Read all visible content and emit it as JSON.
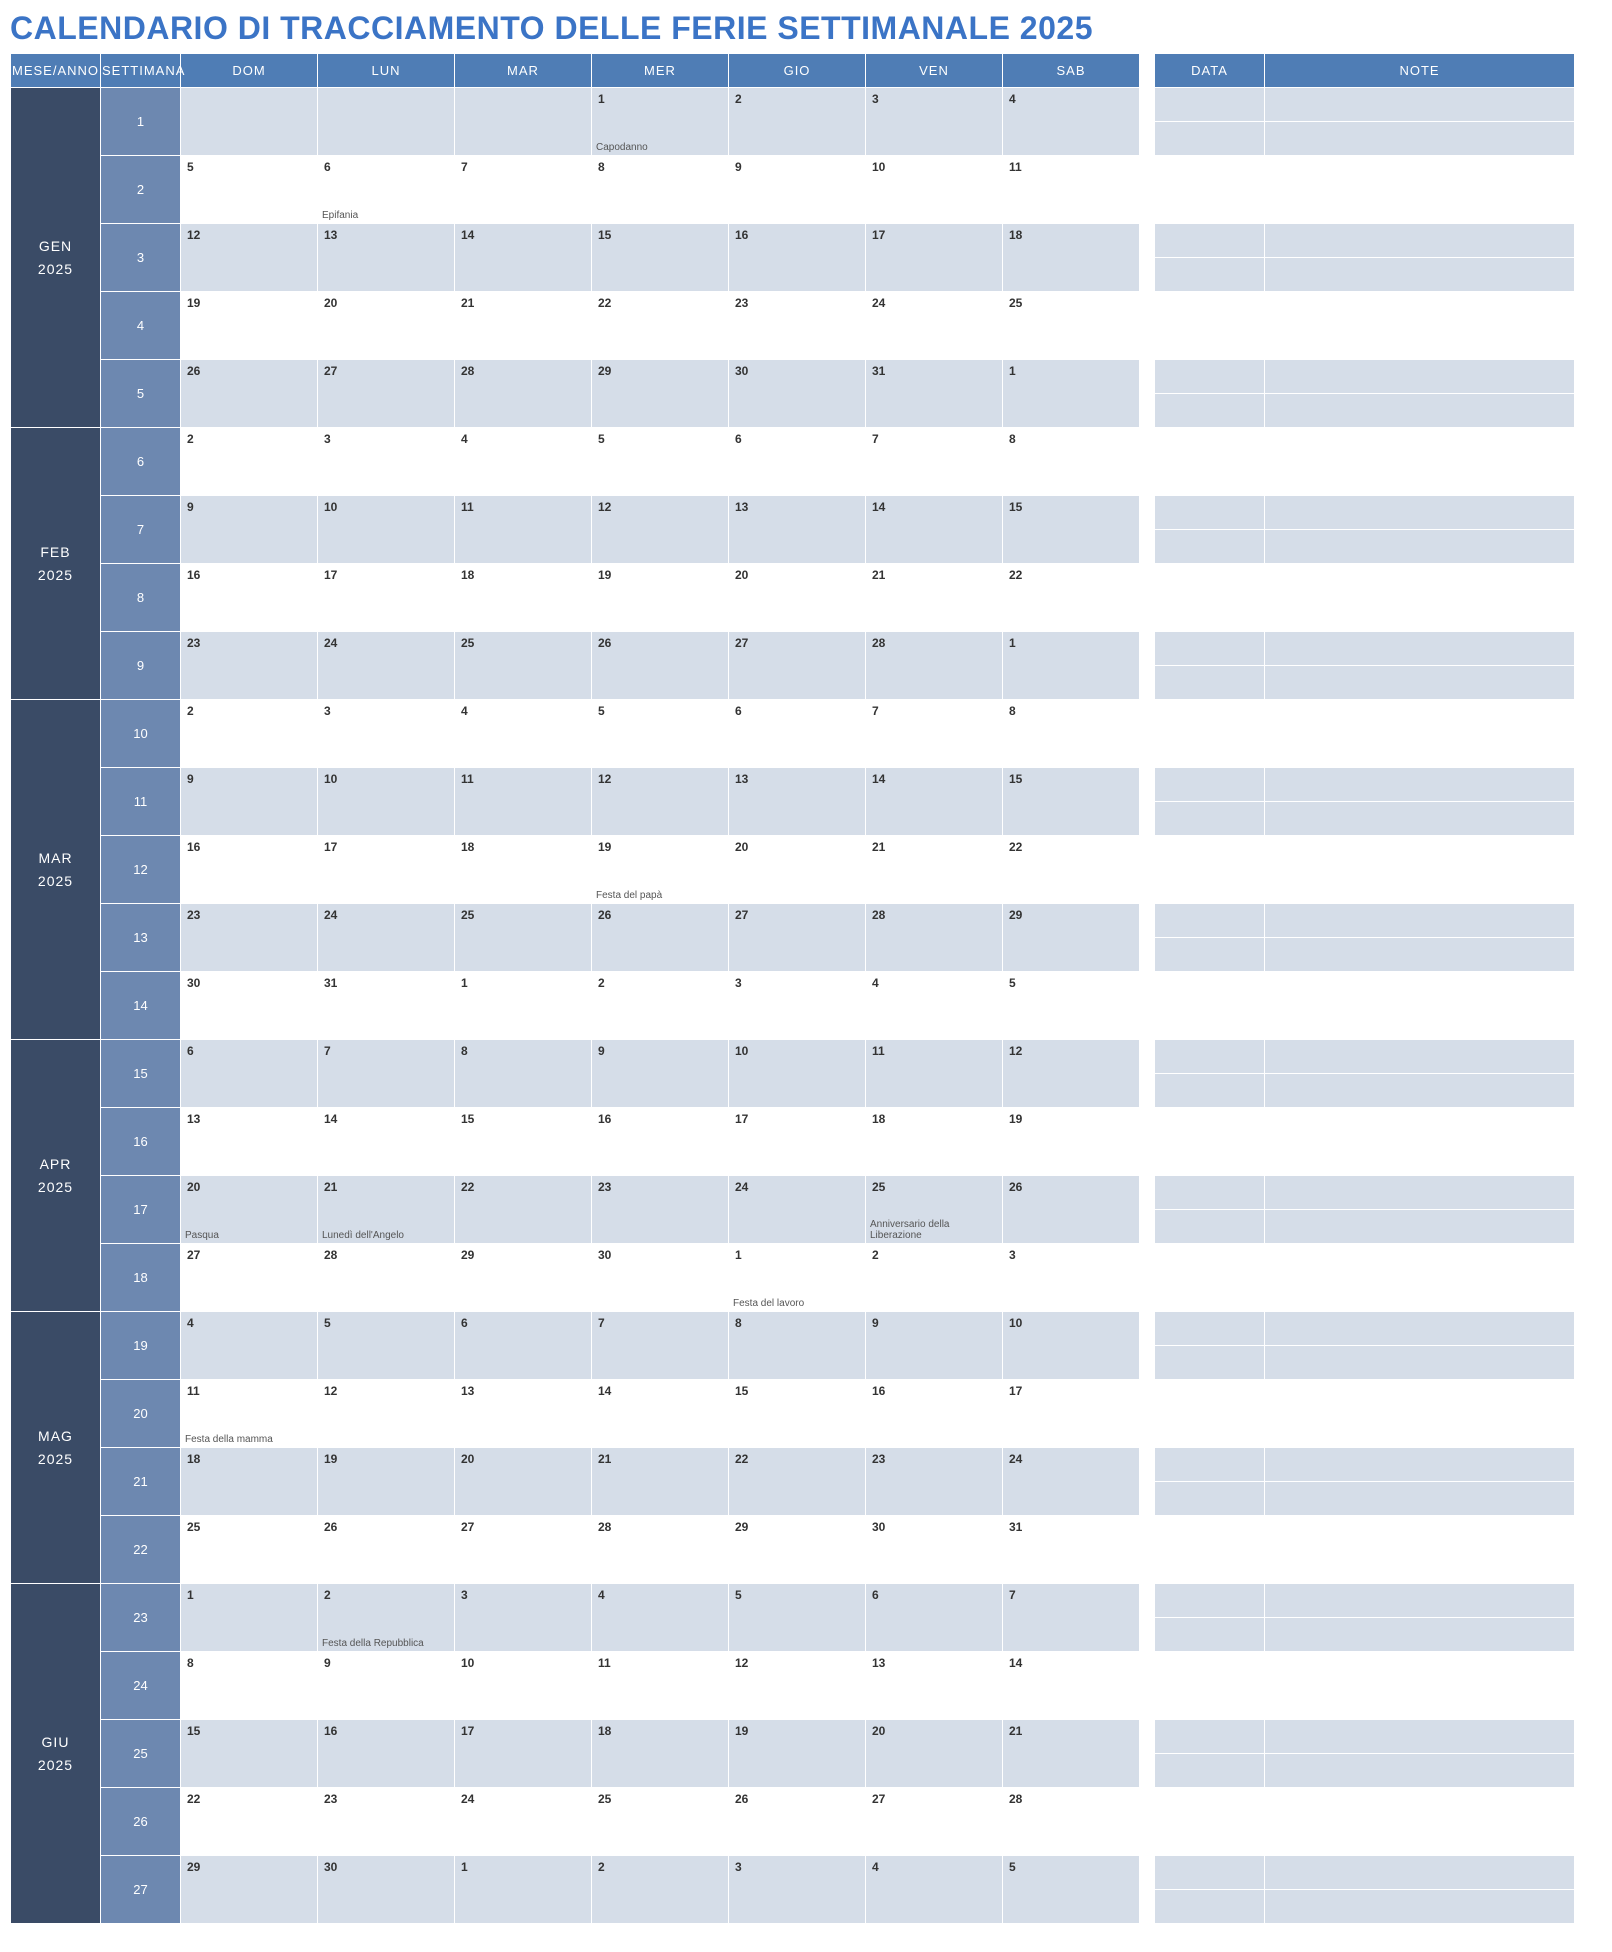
{
  "title": "CALENDARIO DI TRACCIAMENTO DELLE FERIE SETTIMANALE 2025",
  "headers": {
    "month": "MESE/ANNO",
    "week": "SETTIMANA",
    "days": [
      "DOM",
      "LUN",
      "MAR",
      "MER",
      "GIO",
      "VEN",
      "SAB"
    ],
    "data": "DATA",
    "note": "NOTE"
  },
  "months": [
    {
      "label": "GEN",
      "year": "2025",
      "weeks": [
        {
          "num": "1",
          "shade": true,
          "days": [
            {
              "d": ""
            },
            {
              "d": ""
            },
            {
              "d": ""
            },
            {
              "d": "1",
              "h": "Capodanno"
            },
            {
              "d": "2"
            },
            {
              "d": "3"
            },
            {
              "d": "4"
            }
          ]
        },
        {
          "num": "2",
          "shade": false,
          "days": [
            {
              "d": "5"
            },
            {
              "d": "6",
              "h": "Epifania"
            },
            {
              "d": "7"
            },
            {
              "d": "8"
            },
            {
              "d": "9"
            },
            {
              "d": "10"
            },
            {
              "d": "11"
            }
          ]
        },
        {
          "num": "3",
          "shade": true,
          "days": [
            {
              "d": "12"
            },
            {
              "d": "13"
            },
            {
              "d": "14"
            },
            {
              "d": "15"
            },
            {
              "d": "16"
            },
            {
              "d": "17"
            },
            {
              "d": "18"
            }
          ]
        },
        {
          "num": "4",
          "shade": false,
          "days": [
            {
              "d": "19"
            },
            {
              "d": "20"
            },
            {
              "d": "21"
            },
            {
              "d": "22"
            },
            {
              "d": "23"
            },
            {
              "d": "24"
            },
            {
              "d": "25"
            }
          ]
        },
        {
          "num": "5",
          "shade": true,
          "days": [
            {
              "d": "26"
            },
            {
              "d": "27"
            },
            {
              "d": "28"
            },
            {
              "d": "29"
            },
            {
              "d": "30"
            },
            {
              "d": "31"
            },
            {
              "d": "1"
            }
          ]
        }
      ]
    },
    {
      "label": "FEB",
      "year": "2025",
      "weeks": [
        {
          "num": "6",
          "shade": false,
          "days": [
            {
              "d": "2"
            },
            {
              "d": "3"
            },
            {
              "d": "4"
            },
            {
              "d": "5"
            },
            {
              "d": "6"
            },
            {
              "d": "7"
            },
            {
              "d": "8"
            }
          ]
        },
        {
          "num": "7",
          "shade": true,
          "days": [
            {
              "d": "9"
            },
            {
              "d": "10"
            },
            {
              "d": "11"
            },
            {
              "d": "12"
            },
            {
              "d": "13"
            },
            {
              "d": "14"
            },
            {
              "d": "15"
            }
          ]
        },
        {
          "num": "8",
          "shade": false,
          "days": [
            {
              "d": "16"
            },
            {
              "d": "17"
            },
            {
              "d": "18"
            },
            {
              "d": "19"
            },
            {
              "d": "20"
            },
            {
              "d": "21"
            },
            {
              "d": "22"
            }
          ]
        },
        {
          "num": "9",
          "shade": true,
          "days": [
            {
              "d": "23"
            },
            {
              "d": "24"
            },
            {
              "d": "25"
            },
            {
              "d": "26"
            },
            {
              "d": "27"
            },
            {
              "d": "28"
            },
            {
              "d": "1"
            }
          ]
        }
      ]
    },
    {
      "label": "MAR",
      "year": "2025",
      "weeks": [
        {
          "num": "10",
          "shade": false,
          "days": [
            {
              "d": "2"
            },
            {
              "d": "3"
            },
            {
              "d": "4"
            },
            {
              "d": "5"
            },
            {
              "d": "6"
            },
            {
              "d": "7"
            },
            {
              "d": "8"
            }
          ]
        },
        {
          "num": "11",
          "shade": true,
          "days": [
            {
              "d": "9"
            },
            {
              "d": "10"
            },
            {
              "d": "11"
            },
            {
              "d": "12"
            },
            {
              "d": "13"
            },
            {
              "d": "14"
            },
            {
              "d": "15"
            }
          ]
        },
        {
          "num": "12",
          "shade": false,
          "days": [
            {
              "d": "16"
            },
            {
              "d": "17"
            },
            {
              "d": "18"
            },
            {
              "d": "19",
              "h": "Festa del papà"
            },
            {
              "d": "20"
            },
            {
              "d": "21"
            },
            {
              "d": "22"
            }
          ]
        },
        {
          "num": "13",
          "shade": true,
          "days": [
            {
              "d": "23"
            },
            {
              "d": "24"
            },
            {
              "d": "25"
            },
            {
              "d": "26"
            },
            {
              "d": "27"
            },
            {
              "d": "28"
            },
            {
              "d": "29"
            }
          ]
        },
        {
          "num": "14",
          "shade": false,
          "days": [
            {
              "d": "30"
            },
            {
              "d": "31"
            },
            {
              "d": "1"
            },
            {
              "d": "2"
            },
            {
              "d": "3"
            },
            {
              "d": "4"
            },
            {
              "d": "5"
            }
          ]
        }
      ]
    },
    {
      "label": "APR",
      "year": "2025",
      "weeks": [
        {
          "num": "15",
          "shade": true,
          "days": [
            {
              "d": "6"
            },
            {
              "d": "7"
            },
            {
              "d": "8"
            },
            {
              "d": "9"
            },
            {
              "d": "10"
            },
            {
              "d": "11"
            },
            {
              "d": "12"
            }
          ]
        },
        {
          "num": "16",
          "shade": false,
          "days": [
            {
              "d": "13"
            },
            {
              "d": "14"
            },
            {
              "d": "15"
            },
            {
              "d": "16"
            },
            {
              "d": "17"
            },
            {
              "d": "18"
            },
            {
              "d": "19"
            }
          ]
        },
        {
          "num": "17",
          "shade": true,
          "days": [
            {
              "d": "20",
              "h": "Pasqua"
            },
            {
              "d": "21",
              "h": "Lunedì dell'Angelo"
            },
            {
              "d": "22"
            },
            {
              "d": "23"
            },
            {
              "d": "24"
            },
            {
              "d": "25",
              "h": "Anniversario della Liberazione"
            },
            {
              "d": "26"
            }
          ]
        },
        {
          "num": "18",
          "shade": false,
          "days": [
            {
              "d": "27"
            },
            {
              "d": "28"
            },
            {
              "d": "29"
            },
            {
              "d": "30"
            },
            {
              "d": "1",
              "h": "Festa del lavoro"
            },
            {
              "d": "2"
            },
            {
              "d": "3"
            }
          ]
        }
      ]
    },
    {
      "label": "MAG",
      "year": "2025",
      "weeks": [
        {
          "num": "19",
          "shade": true,
          "days": [
            {
              "d": "4"
            },
            {
              "d": "5"
            },
            {
              "d": "6"
            },
            {
              "d": "7"
            },
            {
              "d": "8"
            },
            {
              "d": "9"
            },
            {
              "d": "10"
            }
          ]
        },
        {
          "num": "20",
          "shade": false,
          "days": [
            {
              "d": "11",
              "h": "Festa della mamma"
            },
            {
              "d": "12"
            },
            {
              "d": "13"
            },
            {
              "d": "14"
            },
            {
              "d": "15"
            },
            {
              "d": "16"
            },
            {
              "d": "17"
            }
          ]
        },
        {
          "num": "21",
          "shade": true,
          "days": [
            {
              "d": "18"
            },
            {
              "d": "19"
            },
            {
              "d": "20"
            },
            {
              "d": "21"
            },
            {
              "d": "22"
            },
            {
              "d": "23"
            },
            {
              "d": "24"
            }
          ]
        },
        {
          "num": "22",
          "shade": false,
          "days": [
            {
              "d": "25"
            },
            {
              "d": "26"
            },
            {
              "d": "27"
            },
            {
              "d": "28"
            },
            {
              "d": "29"
            },
            {
              "d": "30"
            },
            {
              "d": "31"
            }
          ]
        }
      ]
    },
    {
      "label": "GIU",
      "year": "2025",
      "weeks": [
        {
          "num": "23",
          "shade": true,
          "days": [
            {
              "d": "1"
            },
            {
              "d": "2",
              "h": "Festa della Repubblica"
            },
            {
              "d": "3"
            },
            {
              "d": "4"
            },
            {
              "d": "5"
            },
            {
              "d": "6"
            },
            {
              "d": "7"
            }
          ]
        },
        {
          "num": "24",
          "shade": false,
          "days": [
            {
              "d": "8"
            },
            {
              "d": "9"
            },
            {
              "d": "10"
            },
            {
              "d": "11"
            },
            {
              "d": "12"
            },
            {
              "d": "13"
            },
            {
              "d": "14"
            }
          ]
        },
        {
          "num": "25",
          "shade": true,
          "days": [
            {
              "d": "15"
            },
            {
              "d": "16"
            },
            {
              "d": "17"
            },
            {
              "d": "18"
            },
            {
              "d": "19"
            },
            {
              "d": "20"
            },
            {
              "d": "21"
            }
          ]
        },
        {
          "num": "26",
          "shade": false,
          "days": [
            {
              "d": "22"
            },
            {
              "d": "23"
            },
            {
              "d": "24"
            },
            {
              "d": "25"
            },
            {
              "d": "26"
            },
            {
              "d": "27"
            },
            {
              "d": "28"
            }
          ]
        },
        {
          "num": "27",
          "shade": true,
          "days": [
            {
              "d": "29"
            },
            {
              "d": "30"
            },
            {
              "d": "1"
            },
            {
              "d": "2"
            },
            {
              "d": "3"
            },
            {
              "d": "4"
            },
            {
              "d": "5"
            }
          ]
        }
      ]
    }
  ],
  "styling": {
    "title_color": "#3b74c6",
    "header_bg": "#4f7db5",
    "month_bg": "#3a4b66",
    "week_bg": "#6d88b0",
    "row_shade": "#d5dde8",
    "row_plain": "#ffffff",
    "border_color": "#ffffff",
    "title_fontsize": 32,
    "header_fontsize": 13,
    "daynum_fontsize": 12,
    "holiday_fontsize": 10
  }
}
